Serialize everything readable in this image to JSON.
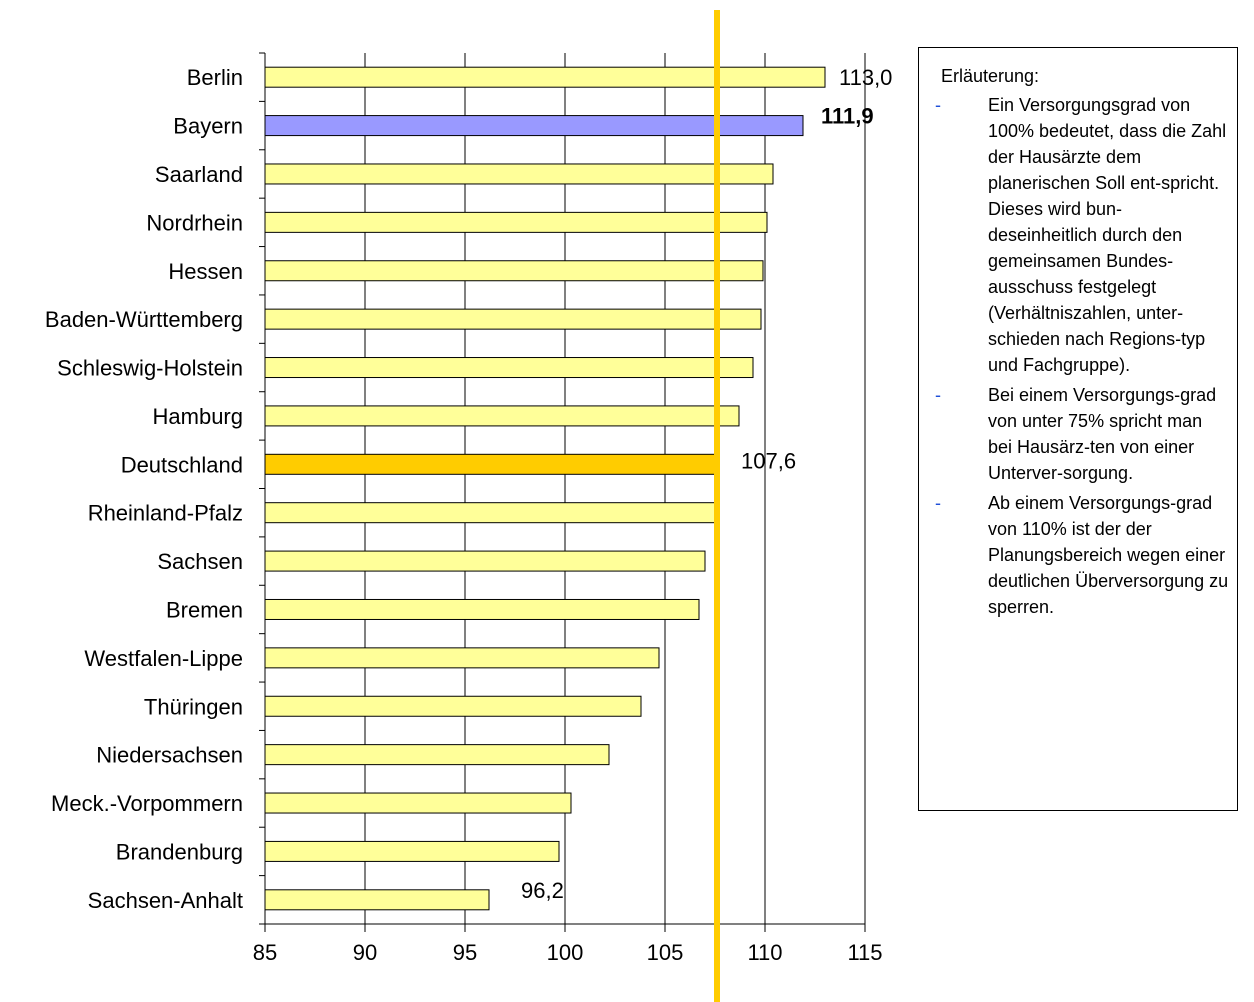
{
  "chart_data": {
    "type": "bar",
    "orientation": "horizontal",
    "categories": [
      "Berlin",
      "Bayern",
      "Saarland",
      "Nordrhein",
      "Hessen",
      "Baden-Württemberg",
      "Schleswig-Holstein",
      "Hamburg",
      "Deutschland",
      "Rheinland-Pfalz",
      "Sachsen",
      "Bremen",
      "Westfalen-Lippe",
      "Thüringen",
      "Niedersachsen",
      "Meck.-Vorpommern",
      "Brandenburg",
      "Sachsen-Anhalt"
    ],
    "values": [
      113.0,
      111.9,
      110.4,
      110.1,
      109.9,
      109.8,
      109.4,
      108.7,
      107.6,
      107.5,
      107.0,
      106.7,
      104.7,
      103.8,
      102.2,
      100.3,
      99.7,
      96.2
    ],
    "highlight": {
      "Bayern": "#9999ff",
      "Deutschland": "#ffcc00"
    },
    "default_color": "#ffff99",
    "xlim": [
      85,
      115
    ],
    "xticks": [
      "85",
      "90",
      "95",
      "100",
      "105",
      "110",
      "115"
    ],
    "reference_line": {
      "value": 107.6,
      "color": "#ffcc00"
    },
    "data_labels": [
      {
        "category": "Berlin",
        "text": "113,0",
        "bold": false
      },
      {
        "category": "Bayern",
        "text": "111,9",
        "bold": true
      },
      {
        "category": "Deutschland",
        "text": "107,6",
        "bold": false
      },
      {
        "category": "Sachsen-Anhalt",
        "text": "96,2",
        "bold": false
      }
    ],
    "grid": "vertical"
  },
  "legend": {
    "title": "Erläuterung:",
    "items": [
      "Ein Versorgungsgrad von 100% bedeutet, dass die Zahl der Hausärzte dem planerischen Soll ent-spricht. Dieses wird bun-deseinheitlich durch den gemeinsamen Bundes-ausschuss festgelegt (Verhältniszahlen, unter-schieden nach Regions-typ und Fachgruppe).",
      "Bei einem Versorgungs-grad von unter 75% spricht man bei Hausärz-ten von einer Unterver-sorgung.",
      "Ab einem Versorgungs-grad von 110% ist der der Planungsbereich wegen einer deutlichen Überversorgung zu sperren."
    ],
    "bullet": "-"
  }
}
